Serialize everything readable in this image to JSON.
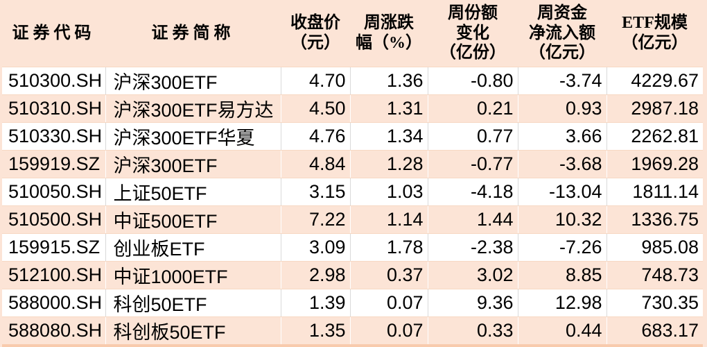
{
  "colors": {
    "peach_bg": "#fce4d6",
    "peach_dark_strip": "#f8cbad",
    "row_separator_line": "#f7d8c3",
    "grid_line_on_white_row": "#d9d9d9",
    "grid_line_on_peach_row": "#ffffff",
    "text": "#000000"
  },
  "chart_data": {
    "type": "table",
    "title": "",
    "legend_position": "none",
    "grid": "light vertical and horizontal separators, alternating row shading",
    "columns": [
      {
        "key": "code",
        "label": "证券代码",
        "display": "证券代码"
      },
      {
        "key": "name",
        "label": "证券简称",
        "display": "证券简称"
      },
      {
        "key": "close",
        "label": "收盘价（元）",
        "display": "收盘价\n（元）"
      },
      {
        "key": "change_pct",
        "label": "周涨跌幅（%）",
        "display": "周涨跌\n幅（%）"
      },
      {
        "key": "share_change",
        "label": "周份额变化（亿份）",
        "display": "周份额\n变化\n（亿份）"
      },
      {
        "key": "net_inflow",
        "label": "周资金净流入额（亿元）",
        "display": "周资金\n净流入额\n（亿元）"
      },
      {
        "key": "scale",
        "label": "ETF规模（亿元）",
        "display": "ETF规模\n（亿元）"
      }
    ],
    "rows": [
      {
        "code": "510300.SH",
        "name": "沪深300ETF",
        "close": "4.70",
        "change_pct": "1.36",
        "share_change": "-0.80",
        "net_inflow": "-3.74",
        "scale": "4229.67"
      },
      {
        "code": "510310.SH",
        "name": "沪深300ETF易方达",
        "close": "4.50",
        "change_pct": "1.31",
        "share_change": "0.21",
        "net_inflow": "0.93",
        "scale": "2987.18"
      },
      {
        "code": "510330.SH",
        "name": "沪深300ETF华夏",
        "close": "4.76",
        "change_pct": "1.34",
        "share_change": "0.77",
        "net_inflow": "3.66",
        "scale": "2262.81"
      },
      {
        "code": "159919.SZ",
        "name": "沪深300ETF",
        "close": "4.84",
        "change_pct": "1.28",
        "share_change": "-0.77",
        "net_inflow": "-3.68",
        "scale": "1969.28"
      },
      {
        "code": "510050.SH",
        "name": "上证50ETF",
        "close": "3.15",
        "change_pct": "1.03",
        "share_change": "-4.18",
        "net_inflow": "-13.04",
        "scale": "1811.14"
      },
      {
        "code": "510500.SH",
        "name": "中证500ETF",
        "close": "7.22",
        "change_pct": "1.14",
        "share_change": "1.44",
        "net_inflow": "10.32",
        "scale": "1336.75"
      },
      {
        "code": "159915.SZ",
        "name": "创业板ETF",
        "close": "3.09",
        "change_pct": "1.78",
        "share_change": "-2.38",
        "net_inflow": "-7.26",
        "scale": "985.08"
      },
      {
        "code": "512100.SH",
        "name": "中证1000ETF",
        "close": "2.98",
        "change_pct": "0.37",
        "share_change": "3.02",
        "net_inflow": "8.85",
        "scale": "748.73"
      },
      {
        "code": "588000.SH",
        "name": "科创50ETF",
        "close": "1.39",
        "change_pct": "0.07",
        "share_change": "9.36",
        "net_inflow": "12.98",
        "scale": "730.35"
      },
      {
        "code": "588080.SH",
        "name": "科创板50ETF",
        "close": "1.35",
        "change_pct": "0.07",
        "share_change": "0.33",
        "net_inflow": "0.44",
        "scale": "683.17"
      }
    ]
  }
}
